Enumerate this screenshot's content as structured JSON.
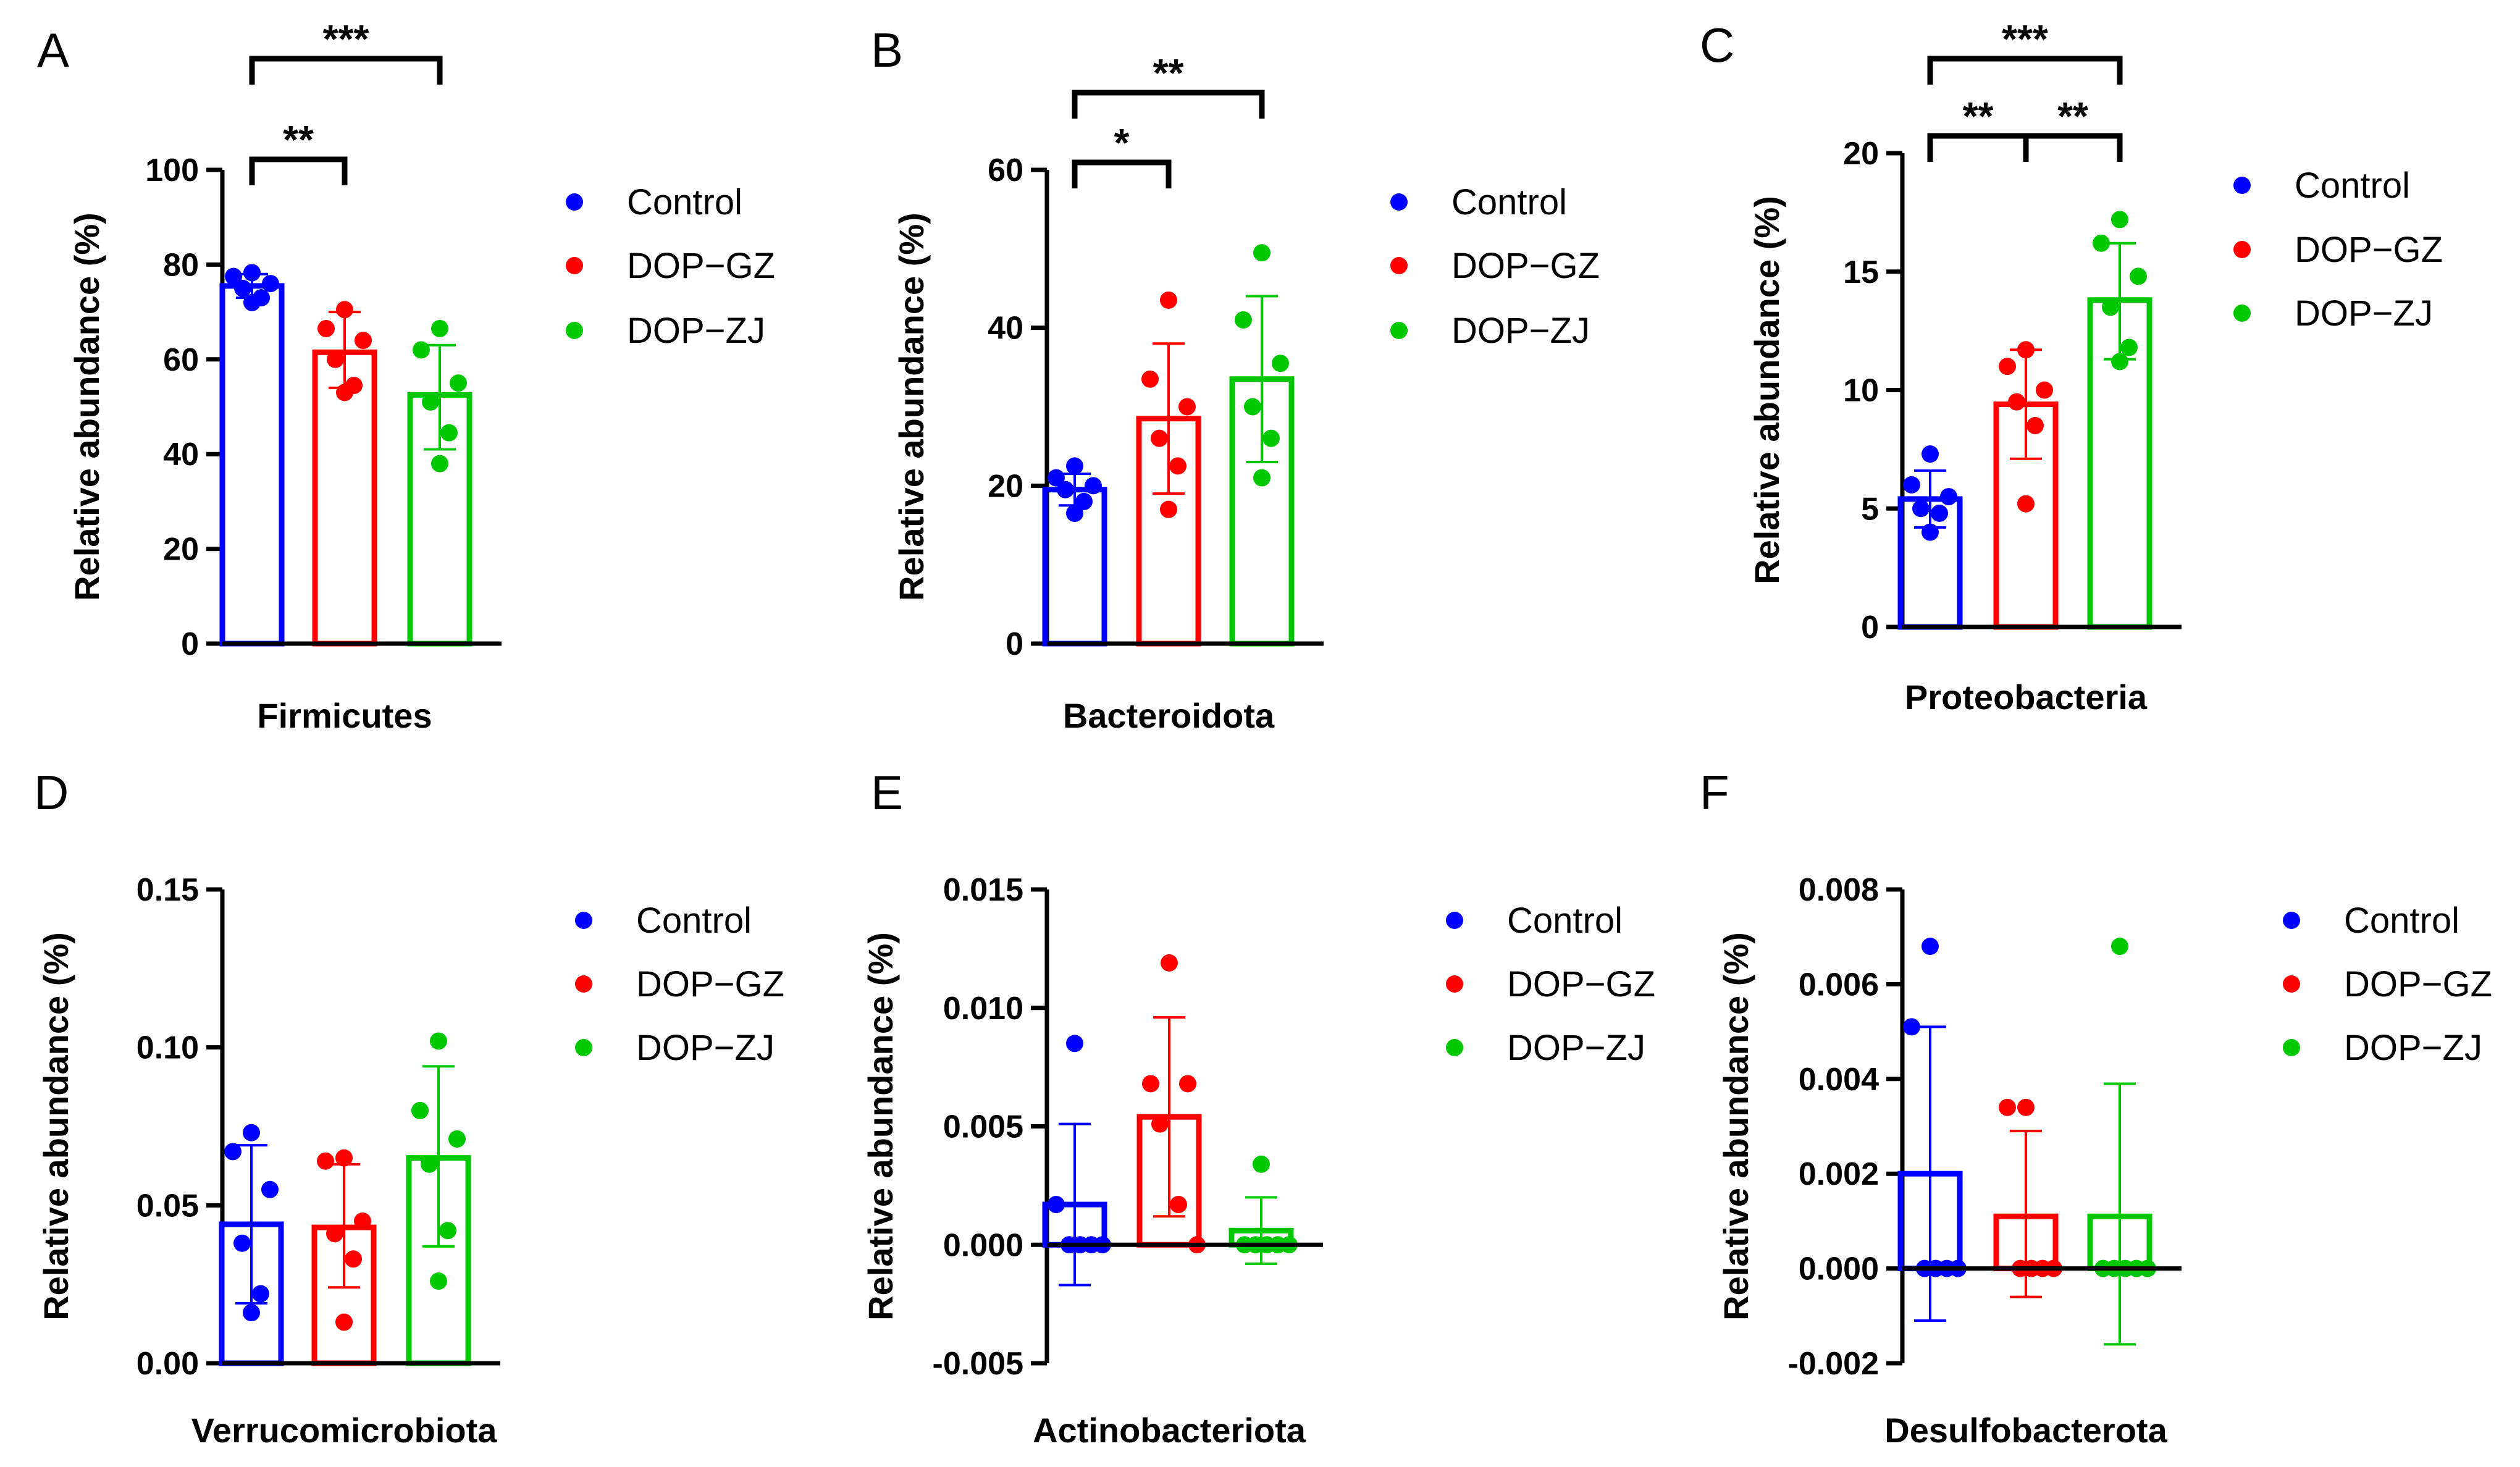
{
  "colors": {
    "Control": "#0000ff",
    "DOP-GZ": "#ff0000",
    "DOP-ZJ": "#00c800",
    "axis": "#000000"
  },
  "chart_data": [
    {
      "type": "bar",
      "panel_letter": "A",
      "title": "",
      "xlabel": "Firmicutes",
      "ylabel": "Relative abundance (%)",
      "ylim": [
        0,
        100
      ],
      "ticks": [
        "0",
        "20",
        "40",
        "60",
        "80",
        "100"
      ],
      "tick_values": [
        0,
        20,
        40,
        60,
        80,
        100
      ],
      "categories": [
        "Control",
        "DOP-GZ",
        "DOP-ZJ"
      ],
      "legend": [
        "Control",
        "DOP−GZ",
        "DOP−ZJ"
      ],
      "series": [
        {
          "name": "Control",
          "mean": 75.5,
          "err_low": 73.0,
          "err_high": 78.0,
          "points": [
            78.3,
            77.5,
            76.0,
            75.0,
            73.0,
            72.0
          ]
        },
        {
          "name": "DOP-GZ",
          "mean": 61.5,
          "err_low": 54.0,
          "err_high": 70.0,
          "points": [
            70.5,
            66.5,
            64.0,
            60.0,
            54.5,
            53.0
          ]
        },
        {
          "name": "DOP-ZJ",
          "mean": 52.5,
          "err_low": 41.0,
          "err_high": 63.0,
          "points": [
            66.5,
            62.0,
            55.0,
            51.0,
            44.5,
            38.0
          ]
        }
      ],
      "significance": [
        {
          "from": 0,
          "to": 1,
          "label": "**"
        },
        {
          "from": 0,
          "to": 2,
          "label": "***"
        }
      ]
    },
    {
      "type": "bar",
      "panel_letter": "B",
      "title": "",
      "xlabel": "Bacteroidota",
      "ylabel": "Relative abundance (%)",
      "ylim": [
        0,
        60
      ],
      "ticks": [
        "0",
        "20",
        "40",
        "60"
      ],
      "tick_values": [
        0,
        20,
        40,
        60
      ],
      "categories": [
        "Control",
        "DOP-GZ",
        "DOP-ZJ"
      ],
      "legend": [
        "Control",
        "DOP−GZ",
        "DOP−ZJ"
      ],
      "series": [
        {
          "name": "Control",
          "mean": 19.5,
          "err_low": 17.5,
          "err_high": 21.5,
          "points": [
            22.5,
            21.0,
            20.0,
            19.5,
            18.0,
            16.5
          ]
        },
        {
          "name": "DOP-GZ",
          "mean": 28.5,
          "err_low": 19.0,
          "err_high": 38.0,
          "points": [
            43.5,
            33.5,
            30.0,
            26.0,
            22.5,
            17.0
          ]
        },
        {
          "name": "DOP-ZJ",
          "mean": 33.5,
          "err_low": 23.0,
          "err_high": 44.0,
          "points": [
            49.5,
            41.0,
            35.5,
            30.0,
            26.0,
            21.0
          ]
        }
      ],
      "significance": [
        {
          "from": 0,
          "to": 1,
          "label": "*"
        },
        {
          "from": 0,
          "to": 2,
          "label": "**"
        }
      ]
    },
    {
      "type": "bar",
      "panel_letter": "C",
      "title": "",
      "xlabel": "Proteobacteria",
      "ylabel": "Relative abundance (%)",
      "ylim": [
        0,
        20
      ],
      "ticks": [
        "0",
        "5",
        "10",
        "15",
        "20"
      ],
      "tick_values": [
        0,
        5,
        10,
        15,
        20
      ],
      "categories": [
        "Control",
        "DOP-GZ",
        "DOP-ZJ"
      ],
      "legend": [
        "Control",
        "DOP−GZ",
        "DOP−ZJ"
      ],
      "series": [
        {
          "name": "Control",
          "mean": 5.4,
          "err_low": 4.2,
          "err_high": 6.6,
          "points": [
            7.3,
            6.0,
            5.5,
            5.0,
            4.8,
            4.0
          ]
        },
        {
          "name": "DOP-GZ",
          "mean": 9.4,
          "err_low": 7.1,
          "err_high": 11.7,
          "points": [
            11.7,
            11.0,
            10.0,
            9.5,
            8.5,
            5.2
          ]
        },
        {
          "name": "DOP-ZJ",
          "mean": 13.8,
          "err_low": 11.3,
          "err_high": 16.2,
          "points": [
            17.2,
            16.2,
            14.8,
            13.5,
            11.8,
            11.2
          ]
        }
      ],
      "significance": [
        {
          "from": 0,
          "to": 1,
          "label": "**"
        },
        {
          "from": 1,
          "to": 2,
          "label": "**"
        },
        {
          "from": 0,
          "to": 2,
          "label": "***"
        }
      ]
    },
    {
      "type": "bar",
      "panel_letter": "D",
      "title": "",
      "xlabel": "Verrucomicrobiota",
      "ylabel": "Relative abundance (%)",
      "ylim": [
        0,
        0.15
      ],
      "ticks": [
        "0.00",
        "0.05",
        "0.10",
        "0.15"
      ],
      "tick_values": [
        0,
        0.05,
        0.1,
        0.15
      ],
      "categories": [
        "Control",
        "DOP-GZ",
        "DOP-ZJ"
      ],
      "legend": [
        "Control",
        "DOP−GZ",
        "DOP−ZJ"
      ],
      "series": [
        {
          "name": "Control",
          "mean": 0.044,
          "err_low": 0.019,
          "err_high": 0.069,
          "points": [
            0.073,
            0.067,
            0.055,
            0.038,
            0.022,
            0.016
          ]
        },
        {
          "name": "DOP-GZ",
          "mean": 0.043,
          "err_low": 0.024,
          "err_high": 0.063,
          "points": [
            0.065,
            0.064,
            0.045,
            0.041,
            0.033,
            0.013
          ]
        },
        {
          "name": "DOP-ZJ",
          "mean": 0.065,
          "err_low": 0.037,
          "err_high": 0.094,
          "points": [
            0.102,
            0.08,
            0.071,
            0.063,
            0.042,
            0.026
          ]
        }
      ],
      "significance": []
    },
    {
      "type": "bar",
      "panel_letter": "E",
      "title": "",
      "xlabel": "Actinobacteriota",
      "ylabel": "Relative abundance (%)",
      "ylim": [
        -0.005,
        0.015
      ],
      "ticks": [
        "-0.005",
        "0.000",
        "0.005",
        "0.010",
        "0.015"
      ],
      "tick_values": [
        -0.005,
        0,
        0.005,
        0.01,
        0.015
      ],
      "categories": [
        "Control",
        "DOP-GZ",
        "DOP-ZJ"
      ],
      "legend": [
        "Control",
        "DOP−GZ",
        "DOP−ZJ"
      ],
      "series": [
        {
          "name": "Control",
          "mean": 0.0017,
          "err_low": -0.0017,
          "err_high": 0.0051,
          "points": [
            0.0085,
            0.0017,
            0.0,
            0.0,
            0.0,
            0.0
          ]
        },
        {
          "name": "DOP-GZ",
          "mean": 0.0054,
          "err_low": 0.0012,
          "err_high": 0.0096,
          "points": [
            0.0119,
            0.0068,
            0.0068,
            0.0051,
            0.0017,
            0.0
          ]
        },
        {
          "name": "DOP-ZJ",
          "mean": 0.0006,
          "err_low": -0.0008,
          "err_high": 0.002,
          "points": [
            0.0034,
            0.0,
            0.0,
            0.0,
            0.0,
            0.0
          ]
        }
      ],
      "significance": []
    },
    {
      "type": "bar",
      "panel_letter": "F",
      "title": "",
      "xlabel": "Desulfobacterota",
      "ylabel": "Relative abundance (%)",
      "ylim": [
        -0.002,
        0.008
      ],
      "ticks": [
        "-0.002",
        "0.000",
        "0.002",
        "0.004",
        "0.006",
        "0.008"
      ],
      "tick_values": [
        -0.002,
        0,
        0.002,
        0.004,
        0.006,
        0.008
      ],
      "categories": [
        "Control",
        "DOP-GZ",
        "DOP-ZJ"
      ],
      "legend": [
        "Control",
        "DOP−GZ",
        "DOP−ZJ"
      ],
      "series": [
        {
          "name": "Control",
          "mean": 0.002,
          "err_low": -0.0011,
          "err_high": 0.0051,
          "points": [
            0.0068,
            0.0051,
            0.0,
            0.0,
            0.0,
            0.0
          ]
        },
        {
          "name": "DOP-GZ",
          "mean": 0.0011,
          "err_low": -0.0006,
          "err_high": 0.0029,
          "points": [
            0.0034,
            0.0034,
            0.0,
            0.0,
            0.0,
            0.0
          ]
        },
        {
          "name": "DOP-ZJ",
          "mean": 0.0011,
          "err_low": -0.0016,
          "err_high": 0.0039,
          "points": [
            0.0068,
            0.0,
            0.0,
            0.0,
            0.0,
            0.0
          ]
        }
      ],
      "significance": []
    }
  ]
}
